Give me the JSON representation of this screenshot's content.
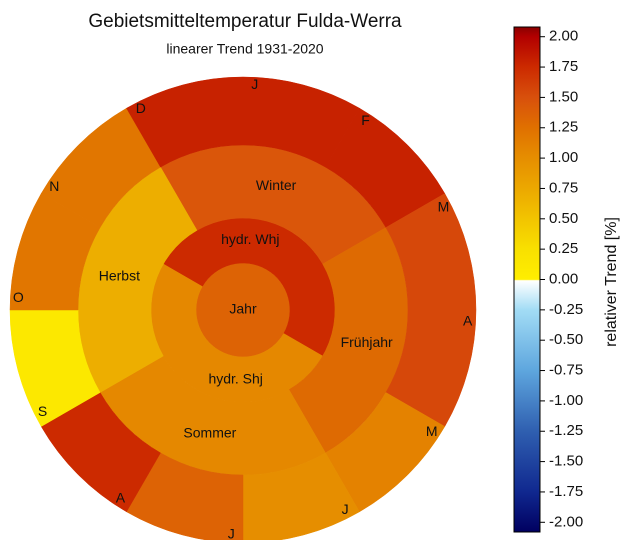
{
  "chart_data": {
    "type": "sunburst",
    "title": "Gebietsmitteltemperatur Fulda-Werra",
    "subtitle": "linearer Trend 1931-2020",
    "colorbar_label": "relativer Trend [%]",
    "clim": [
      -2.08,
      2.08
    ],
    "colormap": [
      [
        -2.08,
        "#000060"
      ],
      [
        -1.75,
        "#10288f"
      ],
      [
        -1.25,
        "#2f5fb0"
      ],
      [
        -0.75,
        "#5ea6de"
      ],
      [
        -0.25,
        "#a2dcf5"
      ],
      [
        -0.01,
        "#ffffff"
      ],
      [
        0.0,
        "#ffee00"
      ],
      [
        0.25,
        "#f8e000"
      ],
      [
        0.5,
        "#f2c400"
      ],
      [
        0.75,
        "#eca800"
      ],
      [
        1.0,
        "#e68e00"
      ],
      [
        1.25,
        "#e07000"
      ],
      [
        1.5,
        "#d8500c"
      ],
      [
        1.75,
        "#cc2a00"
      ],
      [
        2.0,
        "#b20000"
      ],
      [
        2.08,
        "#8a0000"
      ]
    ],
    "cticks": [
      {
        "value": 2,
        "label": "2.00"
      },
      {
        "value": 1.75,
        "label": "1.75"
      },
      {
        "value": 1.5,
        "label": "1.50"
      },
      {
        "value": 1.25,
        "label": "1.25"
      },
      {
        "value": 1,
        "label": "1.00"
      },
      {
        "value": 0.75,
        "label": "0.75"
      },
      {
        "value": 0.5,
        "label": "0.50"
      },
      {
        "value": 0.25,
        "label": "0.25"
      },
      {
        "value": 0,
        "label": "0.00"
      },
      {
        "value": -0.25,
        "label": "-0.25"
      },
      {
        "value": -0.5,
        "label": "-0.50"
      },
      {
        "value": -0.75,
        "label": "-0.75"
      },
      {
        "value": -1,
        "label": "-1.00"
      },
      {
        "value": -1.25,
        "label": "-1.25"
      },
      {
        "value": -1.5,
        "label": "-1.50"
      },
      {
        "value": -1.75,
        "label": "-1.75"
      },
      {
        "value": -2,
        "label": "-2.00"
      }
    ],
    "rings": [
      {
        "labels": [
          "Jahr"
        ],
        "values": [
          1.35
        ]
      },
      {
        "labels": [
          "hydr. Whj",
          "hydr. Shj"
        ],
        "values": [
          1.75,
          1.05
        ]
      },
      {
        "labels": [
          "Winter",
          "Frühjahr",
          "Sommer",
          "Herbst"
        ],
        "values": [
          1.45,
          1.3,
          1.05,
          0.7
        ]
      },
      {
        "labels": [
          "J",
          "F",
          "M",
          "A",
          "M",
          "J",
          "J",
          "A",
          "S",
          "O",
          "N",
          "D"
        ],
        "values": [
          1.8,
          1.8,
          1.55,
          1.55,
          1.1,
          1.0,
          1.35,
          1.75,
          0.1,
          1.2,
          1.2,
          1.8
        ]
      }
    ]
  }
}
